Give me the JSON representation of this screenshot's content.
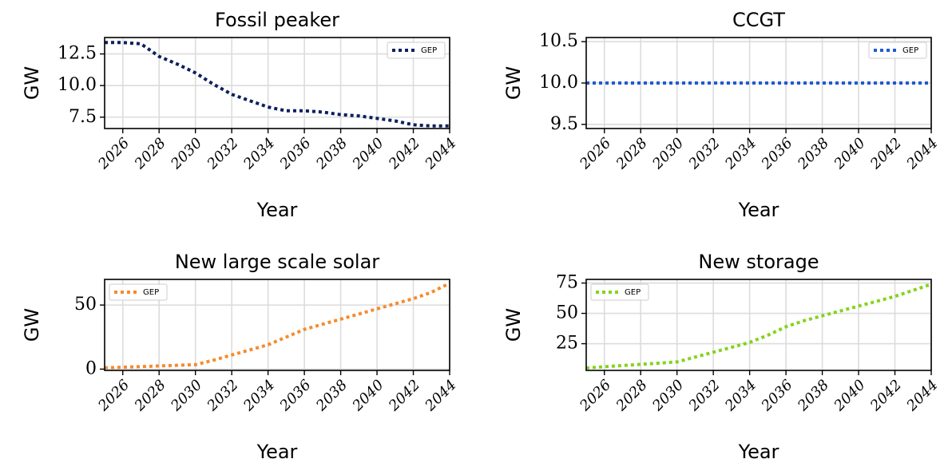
{
  "chart_data": [
    {
      "type": "line",
      "title": "Fossil peaker",
      "xlabel": "Year",
      "ylabel": "GW",
      "xlim": [
        2025,
        2044
      ],
      "ylim": [
        6.6,
        13.8
      ],
      "x_ticks": [
        "2026",
        "2028",
        "2030",
        "2032",
        "2034",
        "2036",
        "2038",
        "2040",
        "2042",
        "2044"
      ],
      "y_ticks": [
        "7.5",
        "10.0",
        "12.5"
      ],
      "grid": true,
      "legend_position": "top-right",
      "series": [
        {
          "name": "GEP",
          "color": "#0b1f5c",
          "x": [
            2025,
            2026,
            2027,
            2028,
            2029,
            2030,
            2031,
            2032,
            2033,
            2034,
            2035,
            2036,
            2037,
            2038,
            2039,
            2040,
            2041,
            2042,
            2043,
            2044
          ],
          "values": [
            13.4,
            13.4,
            13.3,
            12.3,
            11.7,
            11.0,
            10.1,
            9.3,
            8.8,
            8.3,
            8.0,
            8.0,
            7.9,
            7.7,
            7.6,
            7.4,
            7.2,
            6.9,
            6.8,
            6.8
          ]
        }
      ]
    },
    {
      "type": "line",
      "title": "CCGT",
      "xlabel": "Year",
      "ylabel": "GW",
      "xlim": [
        2025,
        2044
      ],
      "ylim": [
        9.45,
        10.55
      ],
      "x_ticks": [
        "2026",
        "2028",
        "2030",
        "2032",
        "2034",
        "2036",
        "2038",
        "2040",
        "2042",
        "2044"
      ],
      "y_ticks": [
        "9.5",
        "10.0",
        "10.5"
      ],
      "grid": true,
      "legend_position": "top-right",
      "series": [
        {
          "name": "GEP",
          "color": "#1f5bd1",
          "x": [
            2025,
            2026,
            2027,
            2028,
            2029,
            2030,
            2031,
            2032,
            2033,
            2034,
            2035,
            2036,
            2037,
            2038,
            2039,
            2040,
            2041,
            2042,
            2043,
            2044
          ],
          "values": [
            10,
            10,
            10,
            10,
            10,
            10,
            10,
            10,
            10,
            10,
            10,
            10,
            10,
            10,
            10,
            10,
            10,
            10,
            10,
            10
          ]
        }
      ]
    },
    {
      "type": "line",
      "title": "New large scale solar",
      "xlabel": "Year",
      "ylabel": "GW",
      "xlim": [
        2025,
        2044
      ],
      "ylim": [
        -1,
        70
      ],
      "x_ticks": [
        "2026",
        "2028",
        "2030",
        "2032",
        "2034",
        "2036",
        "2038",
        "2040",
        "2042",
        "2044"
      ],
      "y_ticks": [
        "0",
        "50"
      ],
      "grid": true,
      "legend_position": "top-left",
      "series": [
        {
          "name": "GEP",
          "color": "#f58b2e",
          "x": [
            2025,
            2026,
            2027,
            2028,
            2029,
            2030,
            2031,
            2032,
            2033,
            2034,
            2035,
            2036,
            2037,
            2038,
            2039,
            2040,
            2041,
            2042,
            2043,
            2044
          ],
          "values": [
            1.0,
            1.5,
            2.0,
            2.5,
            3.0,
            3.5,
            7.0,
            11.0,
            15.0,
            19.0,
            25.0,
            31.0,
            35.0,
            39.0,
            43.0,
            47.0,
            51.0,
            55.0,
            60.0,
            67.0
          ]
        }
      ]
    },
    {
      "type": "line",
      "title": "New storage",
      "xlabel": "Year",
      "ylabel": "GW",
      "xlim": [
        2025,
        2044
      ],
      "ylim": [
        3,
        78
      ],
      "x_ticks": [
        "2026",
        "2028",
        "2030",
        "2032",
        "2034",
        "2036",
        "2038",
        "2040",
        "2042",
        "2044"
      ],
      "y_ticks": [
        "25",
        "50",
        "75"
      ],
      "grid": true,
      "legend_position": "top-left",
      "series": [
        {
          "name": "GEP",
          "color": "#84d31d",
          "x": [
            2025,
            2026,
            2027,
            2028,
            2029,
            2030,
            2031,
            2032,
            2033,
            2034,
            2035,
            2036,
            2037,
            2038,
            2039,
            2040,
            2041,
            2042,
            2043,
            2044
          ],
          "values": [
            5.0,
            6.0,
            7.0,
            8.0,
            9.0,
            10.0,
            14.0,
            18.0,
            22.0,
            26.0,
            32.0,
            39.0,
            44.0,
            48.0,
            52.0,
            56.0,
            60.0,
            64.0,
            69.0,
            74.0
          ]
        }
      ]
    }
  ]
}
